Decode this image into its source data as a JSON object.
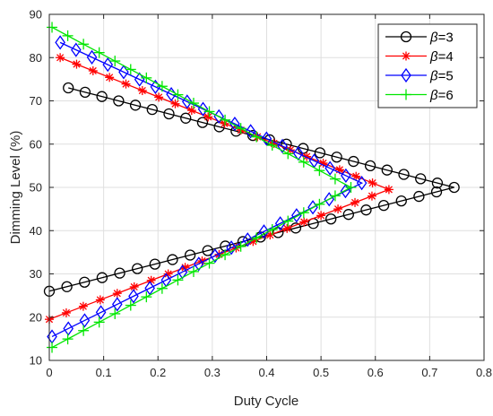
{
  "chart_data": {
    "type": "line",
    "title": "",
    "xlabel": "Duty Cycle",
    "ylabel": "Dimming Level (%)",
    "xlim": [
      0,
      0.8
    ],
    "ylim": [
      10,
      90
    ],
    "xticks": [
      0,
      0.1,
      0.2,
      0.3,
      0.4,
      0.5,
      0.6,
      0.7,
      0.8
    ],
    "yticks": [
      10,
      20,
      30,
      40,
      50,
      60,
      70,
      80,
      90
    ],
    "xtick_labels": [
      "0",
      "0.1",
      "0.2",
      "0.3",
      "0.4",
      "0.5",
      "0.6",
      "0.7",
      "0.8"
    ],
    "ytick_labels": [
      "10",
      "20",
      "30",
      "40",
      "50",
      "60",
      "70",
      "80",
      "90"
    ],
    "grid": true,
    "legend_position": "top-right",
    "series": [
      {
        "name": "β=3",
        "legend_prefix": "β",
        "legend_suffix": "=3",
        "color": "#000000",
        "marker": "circle",
        "upper_branch": {
          "x_start": 0.035,
          "y_start": 73,
          "x_end": 0.745,
          "y_end": 50
        },
        "lower_branch": {
          "x_start": 0.0,
          "y_start": 26,
          "x_end": 0.745,
          "y_end": 50
        },
        "points_per_branch": 24
      },
      {
        "name": "β=4",
        "legend_prefix": "β",
        "legend_suffix": "=4",
        "color": "#ff0000",
        "marker": "asterisk",
        "upper_branch": {
          "x_start": 0.02,
          "y_start": 80,
          "x_end": 0.625,
          "y_end": 49.5
        },
        "lower_branch": {
          "x_start": 0.0,
          "y_start": 19.5,
          "x_end": 0.625,
          "y_end": 49.5
        },
        "points_per_branch": 21
      },
      {
        "name": "β=5",
        "legend_prefix": "β",
        "legend_suffix": "=5",
        "color": "#0000ff",
        "marker": "diamond",
        "upper_branch": {
          "x_start": 0.02,
          "y_start": 83.5,
          "x_end": 0.575,
          "y_end": 51
        },
        "lower_branch": {
          "x_start": 0.005,
          "y_start": 15.5,
          "x_end": 0.575,
          "y_end": 51
        },
        "points_per_branch": 20
      },
      {
        "name": "β=6",
        "legend_prefix": "β",
        "legend_suffix": "=6",
        "color": "#00e600",
        "marker": "plus",
        "upper_branch": {
          "x_start": 0.005,
          "y_start": 87,
          "x_end": 0.555,
          "y_end": 50
        },
        "lower_branch": {
          "x_start": 0.005,
          "y_start": 13,
          "x_end": 0.555,
          "y_end": 50
        },
        "points_per_branch": 20
      }
    ]
  }
}
